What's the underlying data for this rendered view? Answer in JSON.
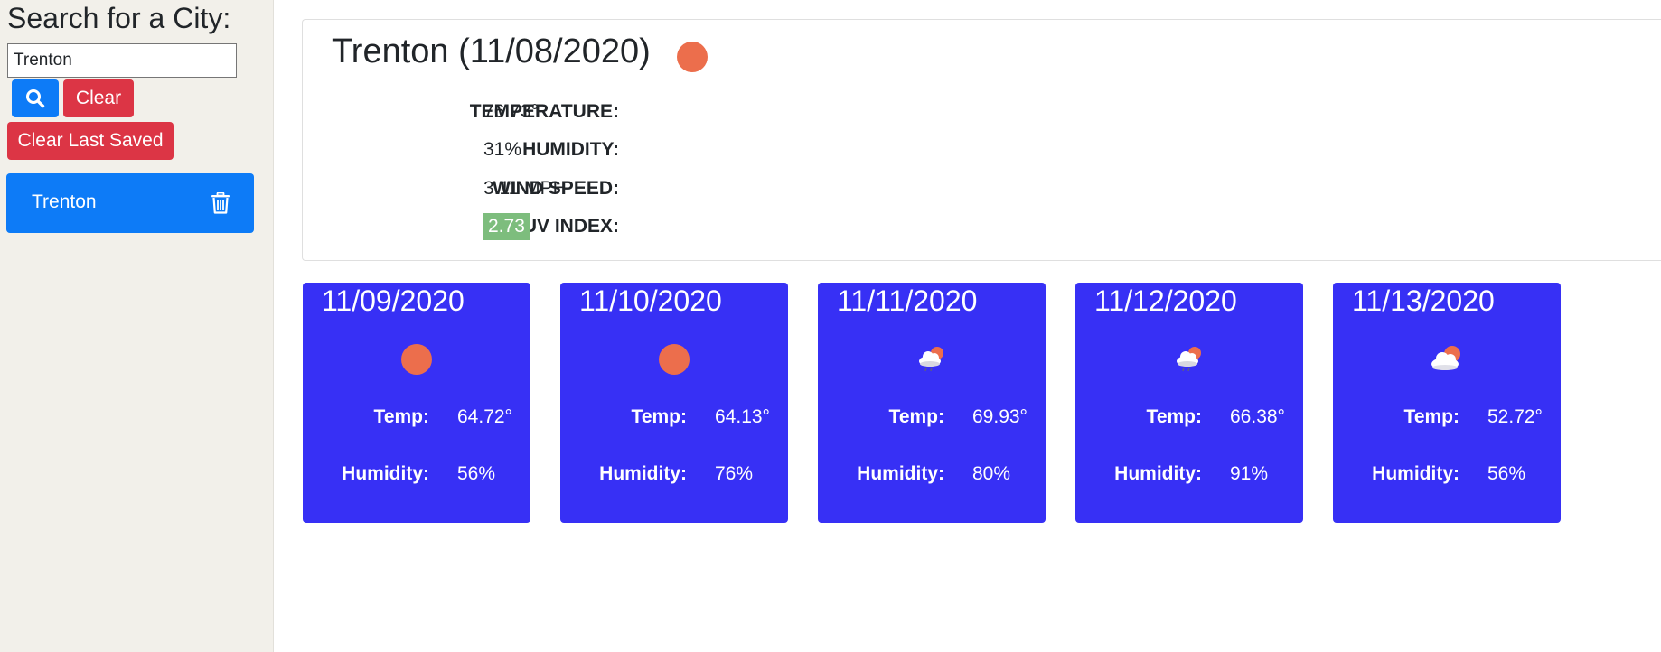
{
  "sidebar": {
    "heading": "Search for a City:",
    "search_value": "Trenton",
    "clear_label": "Clear",
    "clear_saved_label": "Clear Last Saved",
    "saved_cities": [
      "Trenton"
    ]
  },
  "current": {
    "title": "Trenton (11/08/2020)",
    "icon": "sun-icon",
    "temperature_label": "TEMPERATURE:",
    "temperature_value": "76.73°",
    "humidity_label": "HUMIDITY:",
    "humidity_value": "31%",
    "wind_label": "WIND SPEED:",
    "wind_value": "3.11 MPH",
    "uv_label": "UV INDEX:",
    "uv_value": "2.73"
  },
  "forecast": [
    {
      "date": "11/09/2020",
      "icon": "sun-icon",
      "temp_label": "Temp:",
      "temp": "64.72°",
      "humidity_label": "Humidity:",
      "humidity": "56%"
    },
    {
      "date": "11/10/2020",
      "icon": "sun-icon",
      "temp_label": "Temp:",
      "temp": "64.13°",
      "humidity_label": "Humidity:",
      "humidity": "76%"
    },
    {
      "date": "11/11/2020",
      "icon": "cloud-rain-icon",
      "temp_label": "Temp:",
      "temp": "69.93°",
      "humidity_label": "Humidity:",
      "humidity": "80%"
    },
    {
      "date": "11/12/2020",
      "icon": "cloud-rain-icon",
      "temp_label": "Temp:",
      "temp": "66.38°",
      "humidity_label": "Humidity:",
      "humidity": "91%"
    },
    {
      "date": "11/13/2020",
      "icon": "partly-cloudy-icon",
      "temp_label": "Temp:",
      "temp": "52.72°",
      "humidity_label": "Humidity:",
      "humidity": "56%"
    }
  ],
  "colors": {
    "primary": "#0d7bf7",
    "danger": "#dc3545",
    "forecast_card": "#3730f5",
    "sun": "#ec6e4c",
    "uv_badge": "#7dbd7d"
  }
}
